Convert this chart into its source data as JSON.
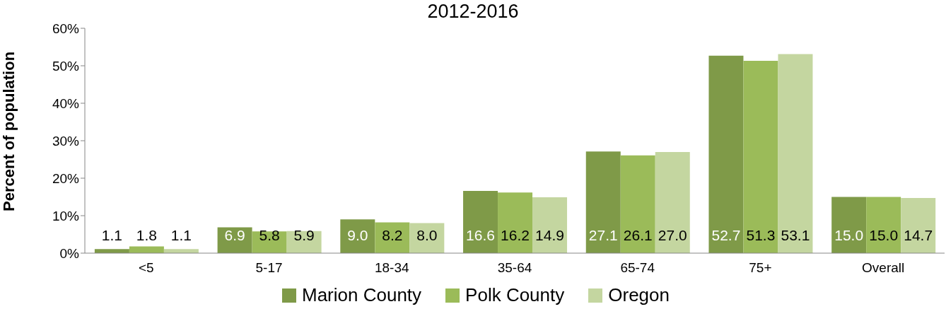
{
  "chart_data": {
    "type": "bar",
    "title": "2012-2016",
    "ylabel": "Percent of population",
    "categories": [
      "<5",
      "5-17",
      "18-34",
      "35-64",
      "65-74",
      "75+",
      "Overall"
    ],
    "series": [
      {
        "name": "Marion County",
        "color": "#7f9a48",
        "values": [
          1.1,
          6.9,
          9.0,
          16.6,
          27.1,
          52.7,
          15.0
        ],
        "value_labels": [
          "1.1",
          "6.9",
          "9.0",
          "16.6",
          "27.1",
          "52.7",
          "15.0"
        ]
      },
      {
        "name": "Polk County",
        "color": "#9bbb59",
        "values": [
          1.8,
          5.8,
          8.2,
          16.2,
          26.1,
          51.3,
          15.0
        ],
        "value_labels": [
          "1.8",
          "5.8",
          "8.2",
          "16.2",
          "26.1",
          "51.3",
          "15.0"
        ]
      },
      {
        "name": "Oregon",
        "color": "#c4d6a0",
        "values": [
          1.1,
          5.9,
          8.0,
          14.9,
          27.0,
          53.1,
          14.7
        ],
        "value_labels": [
          "1.1",
          "5.9",
          "8.0",
          "14.9",
          "27.0",
          "53.1",
          "14.7"
        ]
      }
    ],
    "ylim": [
      0,
      60
    ],
    "yticks": [
      {
        "value": 0,
        "label": "0%"
      },
      {
        "value": 10,
        "label": "10%"
      },
      {
        "value": 20,
        "label": "20%"
      },
      {
        "value": 30,
        "label": "30%"
      },
      {
        "value": 40,
        "label": "40%"
      },
      {
        "value": 50,
        "label": "50%"
      },
      {
        "value": 60,
        "label": "60%"
      }
    ],
    "grid": false,
    "legend": "bottom"
  }
}
